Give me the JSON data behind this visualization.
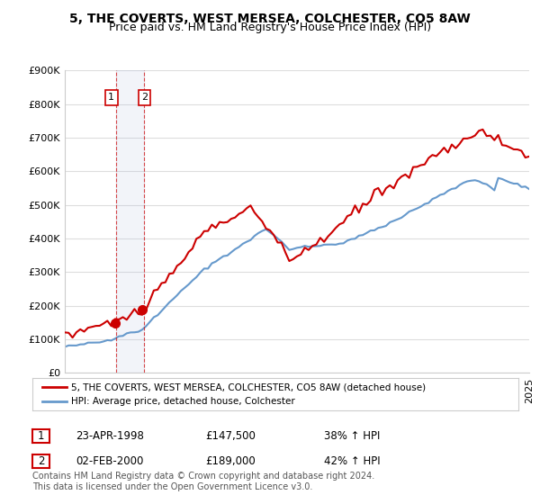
{
  "title": "5, THE COVERTS, WEST MERSEA, COLCHESTER, CO5 8AW",
  "subtitle": "Price paid vs. HM Land Registry's House Price Index (HPI)",
  "ylabel": "",
  "ylim": [
    0,
    900000
  ],
  "yticks": [
    0,
    100000,
    200000,
    300000,
    400000,
    500000,
    600000,
    700000,
    800000,
    900000
  ],
  "ytick_labels": [
    "£0",
    "£100K",
    "£200K",
    "£300K",
    "£400K",
    "£500K",
    "£600K",
    "£700K",
    "£800K",
    "£900K"
  ],
  "background_color": "#ffffff",
  "plot_bg_color": "#ffffff",
  "grid_color": "#dddddd",
  "hpi_line_color": "#6699cc",
  "price_line_color": "#cc0000",
  "transaction1": {
    "date": 1998.31,
    "price": 147500,
    "label": "1",
    "hpi_pct": "38%"
  },
  "transaction2": {
    "date": 2000.09,
    "price": 189000,
    "label": "2",
    "hpi_pct": "42%"
  },
  "legend_line1": "5, THE COVERTS, WEST MERSEA, COLCHESTER, CO5 8AW (detached house)",
  "legend_line2": "HPI: Average price, detached house, Colchester",
  "table_row1": [
    "1",
    "23-APR-1998",
    "£147,500",
    "38% ↑ HPI"
  ],
  "table_row2": [
    "2",
    "02-FEB-2000",
    "£189,000",
    "42% ↑ HPI"
  ],
  "footnote": "Contains HM Land Registry data © Crown copyright and database right 2024.\nThis data is licensed under the Open Government Licence v3.0.",
  "title_fontsize": 10,
  "subtitle_fontsize": 9,
  "tick_fontsize": 8
}
